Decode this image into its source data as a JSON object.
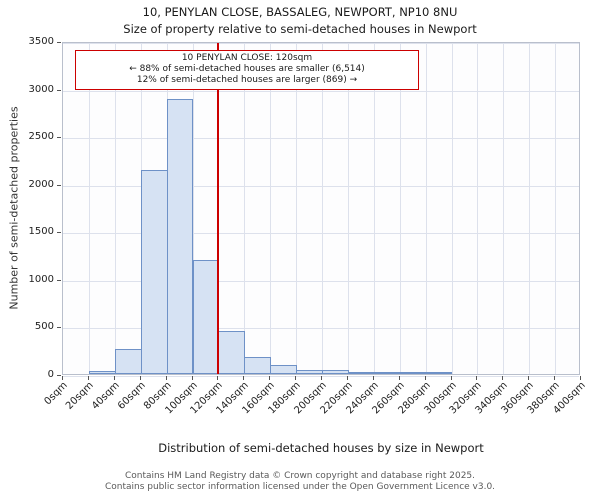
{
  "chart_data": {
    "type": "bar",
    "title": "10, PENYLAN CLOSE, BASSALEG, NEWPORT, NP10 8NU",
    "subtitle": "Size of property relative to semi-detached houses in Newport",
    "xlabel": "Distribution of semi-detached houses by size in Newport",
    "ylabel": "Number of semi-detached properties",
    "bin_start": 0,
    "bin_width": 20,
    "x_tick_labels": [
      "0sqm",
      "20sqm",
      "40sqm",
      "60sqm",
      "80sqm",
      "100sqm",
      "120sqm",
      "140sqm",
      "160sqm",
      "180sqm",
      "200sqm",
      "220sqm",
      "240sqm",
      "260sqm",
      "280sqm",
      "300sqm",
      "320sqm",
      "340sqm",
      "360sqm",
      "380sqm",
      "400sqm"
    ],
    "values": [
      0,
      30,
      260,
      2140,
      2890,
      1200,
      450,
      180,
      90,
      45,
      40,
      25,
      10,
      8,
      4,
      0,
      0,
      0,
      0,
      0
    ],
    "y_ticks": [
      0,
      500,
      1000,
      1500,
      2000,
      2500,
      3000,
      3500
    ],
    "ylim": [
      0,
      3500
    ],
    "grid": true,
    "legend": "none",
    "bar_fill": "#d6e2f3",
    "bar_stroke": "#6e91c7",
    "marker": {
      "x": 120,
      "label": "120sqm",
      "color": "#cc0000"
    },
    "annotation": {
      "line1": "10 PENYLAN CLOSE: 120sqm",
      "line2": "← 88% of semi-detached houses are smaller (6,514)",
      "line3": "12% of semi-detached houses are larger (869) →",
      "border_color": "#cc0000"
    }
  },
  "footer": {
    "line1": "Contains HM Land Registry data © Crown copyright and database right 2025.",
    "line2": "Contains public sector information licensed under the Open Government Licence v3.0."
  }
}
